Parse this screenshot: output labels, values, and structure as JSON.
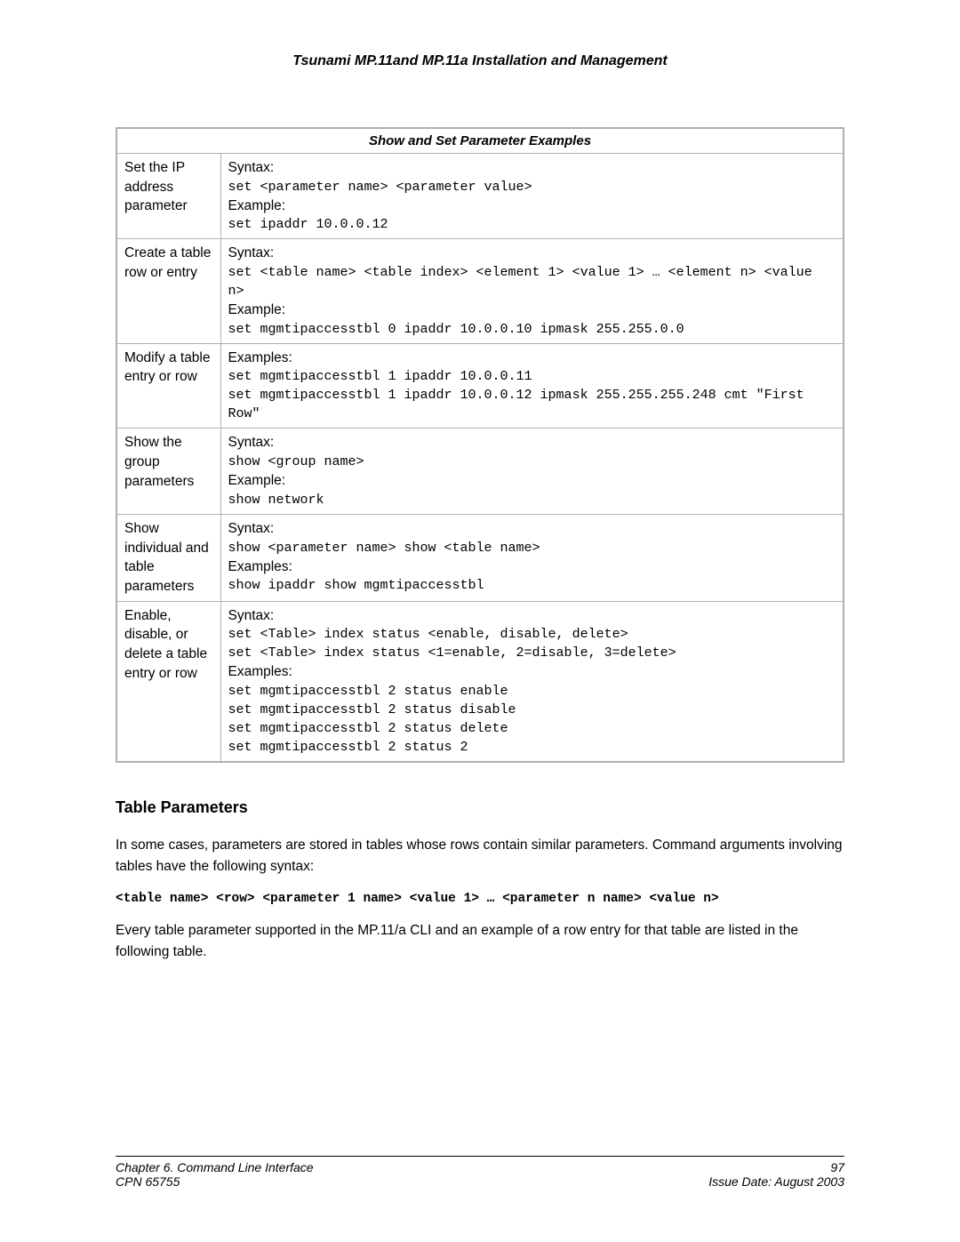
{
  "header": {
    "title": "Tsunami MP.11and MP.11a Installation and Management"
  },
  "table": {
    "caption": "Show and Set Parameter Examples",
    "rows": [
      {
        "label": "Set the IP address parameter",
        "h1": "Syntax:",
        "c1": "set <parameter name> <parameter value>",
        "h2": "Example:",
        "c2": "set ipaddr 10.0.0.12"
      },
      {
        "label": "Create a table row or entry",
        "h1": "Syntax:",
        "c1": "set <table name> <table index> <element 1> <value 1> … <element n> <value n>",
        "h2": "Example:",
        "c2": "set mgmtipaccesstbl 0 ipaddr 10.0.0.10 ipmask 255.255.0.0"
      },
      {
        "label": "Modify a table entry or row",
        "h1": "Examples:",
        "c1": "set mgmtipaccesstbl 1 ipaddr 10.0.0.11",
        "c2": "set mgmtipaccesstbl 1 ipaddr 10.0.0.12 ipmask 255.255.255.248 cmt \"First Row\""
      },
      {
        "label": "Show the group parameters",
        "h1": "Syntax:",
        "c1": "show <group name>",
        "h2": "Example:",
        "c2": "show network"
      },
      {
        "label": "Show individual and table parameters",
        "h1": "Syntax:",
        "c1": "show <parameter name>   show <table name>",
        "h2": "Examples:",
        "c2": "show ipaddr        show mgmtipaccesstbl"
      },
      {
        "label": "Enable, disable, or delete a table entry or row",
        "h1": "Syntax:",
        "c1": "set <Table> index status <enable, disable, delete>",
        "c2": "set <Table> index status <1=enable, 2=disable, 3=delete>",
        "h2": "Examples:",
        "c3": "set mgmtipaccesstbl 2 status enable",
        "c4": "set mgmtipaccesstbl 2 status disable",
        "c5": "set mgmtipaccesstbl 2 status delete",
        "c6": "set mgmtipaccesstbl 2 status 2"
      }
    ]
  },
  "section": {
    "heading": "Table Parameters",
    "p1": "In some cases, parameters are stored in tables whose rows contain similar parameters.  Command arguments involving tables have the following syntax:",
    "syntax": "<table name> <row> <parameter 1 name> <value 1> … <parameter n name> <value n>",
    "p2": "Every table parameter supported in the MP.11/a CLI and an example of a row entry for that table are listed in the following table."
  },
  "footer": {
    "left1": "Chapter 6.  Command Line Interface",
    "left2": "CPN 65755",
    "right1": "97",
    "right2": "Issue Date:  August 2003"
  }
}
